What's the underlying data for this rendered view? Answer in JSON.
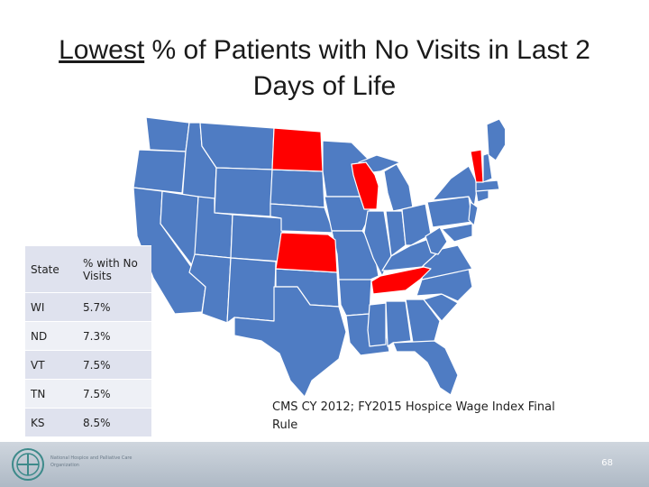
{
  "title": {
    "underlined": "Lowest",
    "rest": "% of Patients with No Visits in Last 2 Days of Life"
  },
  "colors": {
    "state_fill": "#4f7cc3",
    "state_border": "#ffffff",
    "highlight": "#ff0000",
    "table_row_dark": "#dfe2ee",
    "table_row_light": "#eef0f6"
  },
  "map": {
    "highlighted_states": [
      "WI",
      "ND",
      "VT",
      "TN",
      "KS"
    ]
  },
  "table": {
    "headers": [
      "State",
      "% with No Visits"
    ],
    "rows": [
      {
        "state": "WI",
        "pct": "5.7%"
      },
      {
        "state": "ND",
        "pct": "7.3%"
      },
      {
        "state": "VT",
        "pct": "7.5%"
      },
      {
        "state": "TN",
        "pct": "7.5%"
      },
      {
        "state": "KS",
        "pct": "8.5%"
      }
    ]
  },
  "source": "CMS CY 2012; FY2015 Hospice Wage Index Final Rule",
  "footer": {
    "org_name": "National Hospice and Palliative Care Organization",
    "page_number": "68"
  }
}
